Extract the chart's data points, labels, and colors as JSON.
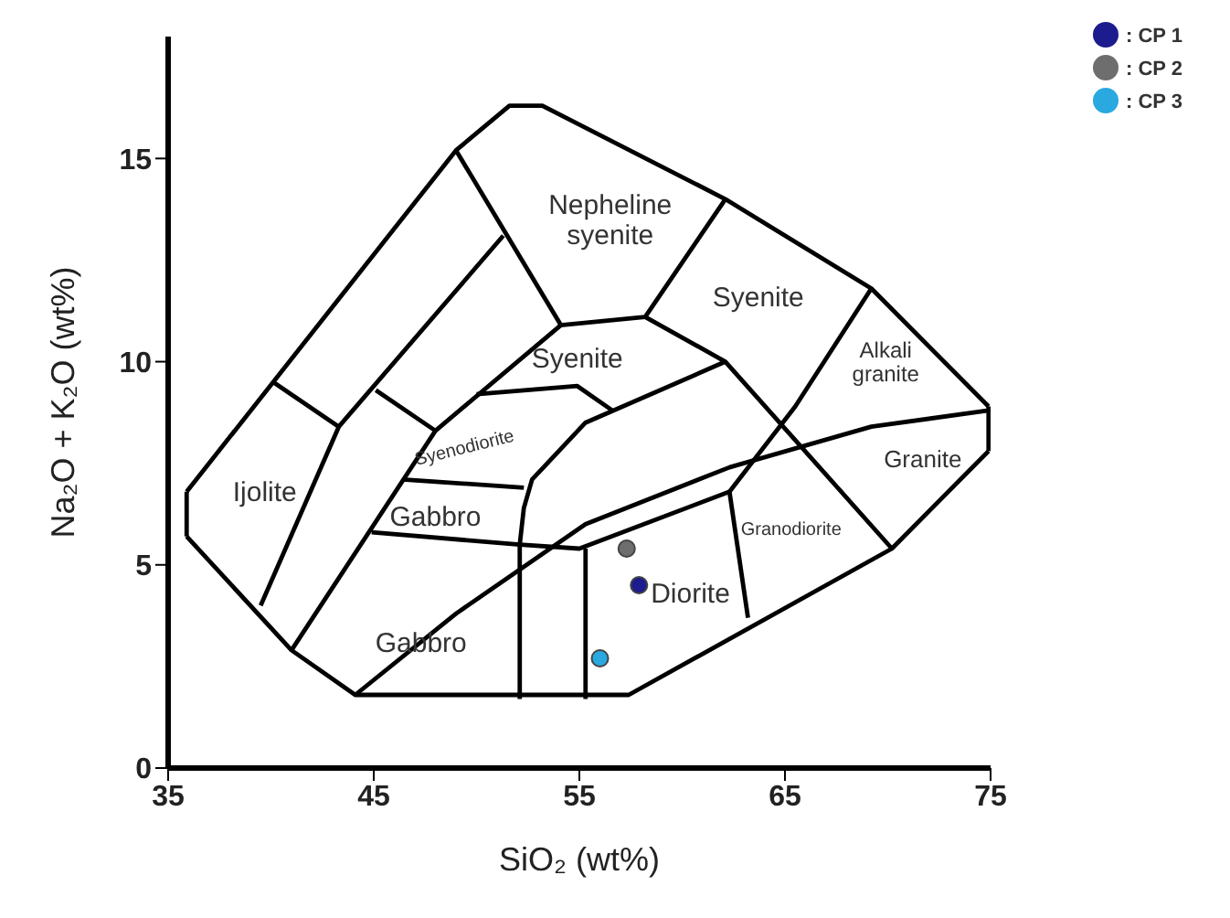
{
  "chart_data": {
    "type": "scatter",
    "xlabel": "SiO₂ (wt%)",
    "ylabel": "Na₂O + K₂O (wt%)",
    "xlim": [
      35,
      75
    ],
    "xticks": [
      35,
      45,
      55,
      65,
      75
    ],
    "ylim": [
      0,
      18
    ],
    "yticks": [
      0,
      5,
      10,
      15
    ],
    "grid": false,
    "legend": "top right",
    "marker": "circle",
    "line_style": "solid",
    "series": [
      {
        "type": "line",
        "marker": "none",
        "color": "#000000",
        "x": [
          35.9,
          49.0,
          51.6,
          53.2,
          62.1,
          69.2,
          74.9
        ],
        "values": [
          6.8,
          15.2,
          16.3,
          16.3,
          14.0,
          11.8,
          8.9
        ]
      },
      {
        "type": "line",
        "marker": "none",
        "color": "#000000",
        "x": [
          35.9,
          41.0,
          44.1,
          57.4,
          70.2,
          74.9
        ],
        "values": [
          5.7,
          2.9,
          1.8,
          1.8,
          5.4,
          7.8
        ]
      },
      {
        "type": "line",
        "marker": "none",
        "color": "#000000",
        "x": [
          35.9,
          35.9
        ],
        "values": [
          5.7,
          6.8
        ]
      },
      {
        "type": "line",
        "marker": "none",
        "color": "#000000",
        "x": [
          74.9,
          74.9
        ],
        "values": [
          7.8,
          8.9
        ]
      },
      {
        "type": "line",
        "marker": "none",
        "color": "#000000",
        "x": [
          40.1,
          43.3
        ],
        "values": [
          9.5,
          8.4
        ]
      },
      {
        "type": "line",
        "marker": "none",
        "color": "#000000",
        "x": [
          39.5,
          43.3,
          51.3
        ],
        "values": [
          4.0,
          8.4,
          13.1
        ]
      },
      {
        "type": "line",
        "marker": "none",
        "color": "#000000",
        "x": [
          45.1,
          48.0
        ],
        "values": [
          9.3,
          8.3
        ]
      },
      {
        "type": "line",
        "marker": "none",
        "color": "#000000",
        "x": [
          41.0,
          48.0,
          54.1
        ],
        "values": [
          2.9,
          8.3,
          10.9
        ]
      },
      {
        "type": "line",
        "marker": "none",
        "color": "#000000",
        "x": [
          49.0,
          54.1
        ],
        "values": [
          15.2,
          10.9
        ]
      },
      {
        "type": "line",
        "marker": "none",
        "color": "#000000",
        "x": [
          54.1,
          58.2,
          62.1
        ],
        "values": [
          10.9,
          11.1,
          14.0
        ]
      },
      {
        "type": "line",
        "marker": "none",
        "color": "#000000",
        "x": [
          58.2,
          62.1,
          70.2
        ],
        "values": [
          11.1,
          10.0,
          5.4
        ]
      },
      {
        "type": "line",
        "marker": "none",
        "color": "#000000",
        "x": [
          50.0,
          54.9,
          56.6
        ],
        "values": [
          9.2,
          9.4,
          8.8
        ]
      },
      {
        "type": "line",
        "marker": "none",
        "color": "#000000",
        "x": [
          52.1,
          52.1,
          52.3,
          52.7,
          55.3,
          62.1
        ],
        "values": [
          1.7,
          5.5,
          6.4,
          7.1,
          8.5,
          10.0
        ]
      },
      {
        "type": "line",
        "marker": "none",
        "color": "#000000",
        "x": [
          46.4,
          52.3
        ],
        "values": [
          7.1,
          6.9
        ]
      },
      {
        "type": "line",
        "marker": "none",
        "color": "#000000",
        "x": [
          44.9,
          52.1,
          55.0,
          62.3
        ],
        "values": [
          5.8,
          5.5,
          5.4,
          6.8
        ]
      },
      {
        "type": "line",
        "marker": "none",
        "color": "#000000",
        "x": [
          55.3,
          55.3
        ],
        "values": [
          1.7,
          5.4
        ]
      },
      {
        "type": "line",
        "marker": "none",
        "color": "#000000",
        "x": [
          62.3,
          65.5,
          69.2
        ],
        "values": [
          6.8,
          8.9,
          11.8
        ]
      },
      {
        "type": "line",
        "marker": "none",
        "color": "#000000",
        "x": [
          62.3,
          63.2
        ],
        "values": [
          6.8,
          3.7
        ]
      },
      {
        "type": "line",
        "marker": "none",
        "color": "#000000",
        "x": [
          44.1,
          49.0,
          55.3,
          62.3,
          69.2,
          74.9
        ],
        "values": [
          1.8,
          3.8,
          6.0,
          7.4,
          8.4,
          8.8
        ]
      },
      {
        "name": ": CP 1",
        "color": "#1c1c8e",
        "x": [
          57.9
        ],
        "values": [
          4.5
        ]
      },
      {
        "name": ": CP 2",
        "color": "#6e6e6e",
        "x": [
          57.3
        ],
        "values": [
          5.4
        ]
      },
      {
        "name": ": CP 3",
        "color": "#29a9e0",
        "x": [
          56.0
        ],
        "values": [
          2.7
        ]
      }
    ],
    "annotations": [
      "Ijolite",
      "Gabbro",
      "Syenodiorite",
      "Gabbro",
      "Nepheline syenite",
      "Syenite",
      "Syenite",
      "Alkali granite",
      "Granite",
      "Granodiorite",
      "Diorite"
    ]
  }
}
